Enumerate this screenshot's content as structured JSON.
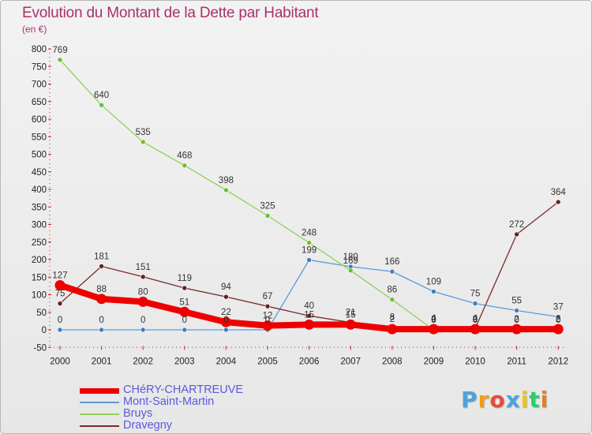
{
  "chart_data": {
    "type": "line",
    "title": "Evolution du Montant de la Dette par Habitant",
    "subtitle": "(en €)",
    "x": [
      "2000",
      "2001",
      "2002",
      "2003",
      "2004",
      "2005",
      "2006",
      "2007",
      "2008",
      "2009",
      "2010",
      "2011",
      "2012"
    ],
    "ylim": [
      -50,
      800
    ],
    "yticks": [
      -50,
      0,
      50,
      100,
      150,
      200,
      250,
      300,
      350,
      400,
      450,
      500,
      550,
      600,
      650,
      700,
      750,
      800
    ],
    "grid": false,
    "legend_position": "bottom-left",
    "series": [
      {
        "name": "Mont-Saint-Martin",
        "color": "#5b9bd5",
        "marker_color": "#3d7fc0",
        "values": [
          0,
          0,
          0,
          0,
          0,
          0,
          199,
          180,
          166,
          109,
          75,
          55,
          37
        ],
        "labels": [
          "0",
          "0",
          "0",
          "0",
          "0",
          "0",
          "199",
          "180",
          "166",
          "109",
          "75",
          "55",
          "37"
        ]
      },
      {
        "name": "Bruys",
        "color": "#8fd14f",
        "marker_color": "#6cbf2a",
        "values": [
          769,
          640,
          535,
          468,
          398,
          325,
          248,
          169,
          86,
          0,
          0,
          0,
          0
        ],
        "labels": [
          "769",
          "640",
          "535",
          "468",
          "398",
          "325",
          "248",
          "169",
          "86",
          "0",
          "0",
          "0",
          "0"
        ]
      },
      {
        "name": "Dravegny",
        "color": "#7a2a2a",
        "marker_color": "#6a1f1f",
        "values": [
          75,
          181,
          151,
          119,
          94,
          67,
          40,
          21,
          8,
          4,
          4,
          272,
          364
        ],
        "labels": [
          "75",
          "181",
          "151",
          "119",
          "94",
          "67",
          "40",
          "21",
          "8",
          "4",
          "4",
          "272",
          "364"
        ]
      },
      {
        "name": "CHéRY-CHARTREUVE",
        "color": "#ee0000",
        "marker_color": "#ee0000",
        "values": [
          127,
          88,
          80,
          51,
          22,
          12,
          15,
          15,
          2,
          2,
          2,
          2,
          2
        ],
        "labels": [
          "127",
          "88",
          "80",
          "51",
          "22",
          "12",
          "15",
          "15",
          "2",
          "2",
          "2",
          "2",
          "2"
        ]
      }
    ]
  },
  "legend": [
    {
      "name": "CHéRY-CHARTREUVE",
      "color": "#ee0000"
    },
    {
      "name": "Mont-Saint-Martin",
      "color": "#5b9bd5"
    },
    {
      "name": "Bruys",
      "color": "#8fd14f"
    },
    {
      "name": "Dravegny",
      "color": "#7a2a2a"
    }
  ],
  "logo": {
    "letters": [
      "P",
      "r",
      "o",
      "x",
      "i",
      "t",
      "i"
    ],
    "colors": [
      "#4aa3df",
      "#f39c12",
      "#e74c3c",
      "#4aa3df",
      "#f1c40f",
      "#2ecc71",
      "#e67e22"
    ]
  }
}
